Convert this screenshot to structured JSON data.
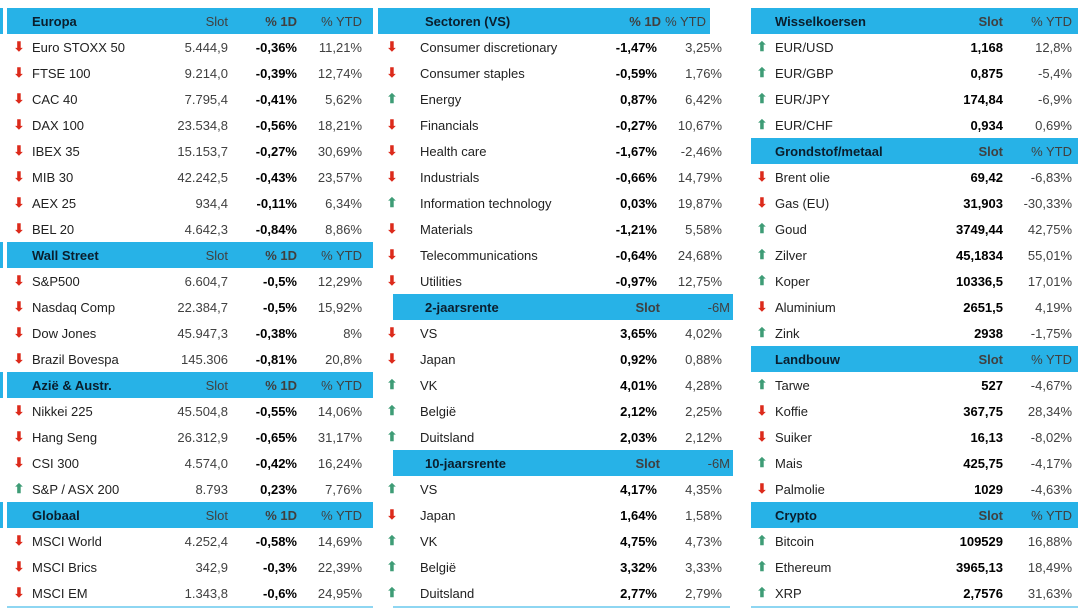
{
  "palette": {
    "header_bg": "#27b2e7",
    "header_faint": "#8ed6f2",
    "arrow_up_green": "#3e9c76",
    "arrow_down_red": "#dc2a1b"
  },
  "icons": {
    "up": "⬆",
    "down": "⬇"
  },
  "tables": [
    {
      "id": "europa",
      "column": "left",
      "variant": "",
      "title": "Europa",
      "headers": [
        "Slot",
        "% 1D",
        "% YTD"
      ],
      "rows": [
        [
          "down",
          "Euro STOXX 50",
          "5.444,9",
          "-0,36%",
          "11,21%"
        ],
        [
          "down",
          "FTSE 100",
          "9.214,0",
          "-0,39%",
          "12,74%"
        ],
        [
          "down",
          "CAC 40",
          "7.795,4",
          "-0,41%",
          "5,62%"
        ],
        [
          "down",
          "DAX 100",
          "23.534,8",
          "-0,56%",
          "18,21%"
        ],
        [
          "down",
          "IBEX 35",
          "15.153,7",
          "-0,27%",
          "30,69%"
        ],
        [
          "down",
          "MIB 30",
          "42.242,5",
          "-0,43%",
          "23,57%"
        ],
        [
          "down",
          "AEX 25",
          "934,4",
          "-0,11%",
          "6,34%"
        ],
        [
          "down",
          "BEL 20",
          "4.642,3",
          "-0,84%",
          "8,86%"
        ]
      ]
    },
    {
      "id": "wall-street",
      "column": "left",
      "variant": "",
      "title": "Wall Street",
      "headers": [
        "Slot",
        "% 1D",
        "% YTD"
      ],
      "rows": [
        [
          "down",
          "S&P500",
          "6.604,7",
          "-0,5%",
          "12,29%"
        ],
        [
          "down",
          "Nasdaq Comp",
          "22.384,7",
          "-0,5%",
          "15,92%"
        ],
        [
          "down",
          "Dow Jones",
          "45.947,3",
          "-0,38%",
          "8%"
        ],
        [
          "down",
          "Brazil Bovespa",
          "145.306",
          "-0,81%",
          "20,8%"
        ]
      ]
    },
    {
      "id": "azie-austr",
      "column": "left",
      "variant": "",
      "title": "Azië & Austr.",
      "headers": [
        "Slot",
        "% 1D",
        "% YTD"
      ],
      "rows": [
        [
          "down",
          "Nikkei 225",
          "45.504,8",
          "-0,55%",
          "14,06%"
        ],
        [
          "down",
          "Hang Seng",
          "26.312,9",
          "-0,65%",
          "31,17%"
        ],
        [
          "down",
          "CSI 300",
          "4.574,0",
          "-0,42%",
          "16,24%"
        ],
        [
          "up",
          "S&P / ASX 200",
          "8.793",
          "0,23%",
          "7,76%"
        ]
      ]
    },
    {
      "id": "globaal",
      "column": "left",
      "variant": "",
      "title": "Globaal",
      "headers": [
        "Slot",
        "% 1D",
        "% YTD"
      ],
      "rows": [
        [
          "down",
          "MSCI World",
          "4.252,4",
          "-0,58%",
          "14,69%"
        ],
        [
          "down",
          "MSCI Brics",
          "342,9",
          "-0,3%",
          "22,39%"
        ],
        [
          "down",
          "MSCI EM",
          "1.343,8",
          "-0,6%",
          "24,95%"
        ]
      ]
    },
    {
      "id": "sectoren-vs",
      "column": "mid",
      "variant": "sectoren",
      "title": "Sectoren (VS)",
      "headers": [
        "% 1D",
        "% YTD"
      ],
      "rows": [
        [
          "down",
          "Consumer discretionary",
          "-1,47%",
          "3,25%"
        ],
        [
          "down",
          "Consumer staples",
          "-0,59%",
          "1,76%"
        ],
        [
          "up",
          "Energy",
          "0,87%",
          "6,42%"
        ],
        [
          "down",
          "Financials",
          "-0,27%",
          "10,67%"
        ],
        [
          "down",
          "Health care",
          "-1,67%",
          "-2,46%"
        ],
        [
          "down",
          "Industrials",
          "-0,66%",
          "14,79%"
        ],
        [
          "up",
          "Information technology",
          "0,03%",
          "19,87%"
        ],
        [
          "down",
          "Materials",
          "-1,21%",
          "5,58%"
        ],
        [
          "down",
          "Telecommunications",
          "-0,64%",
          "24,68%"
        ],
        [
          "down",
          "Utilities",
          "-0,97%",
          "12,75%"
        ]
      ]
    },
    {
      "id": "rente-2j",
      "column": "mid",
      "variant": "rente",
      "title": "2-jaarsrente",
      "headers": [
        "Slot",
        "-6M"
      ],
      "rows": [
        [
          "down",
          "VS",
          "3,65%",
          "4,02%"
        ],
        [
          "down",
          "Japan",
          "0,92%",
          "0,88%"
        ],
        [
          "up",
          "VK",
          "4,01%",
          "4,28%"
        ],
        [
          "up",
          "België",
          "2,12%",
          "2,25%"
        ],
        [
          "up",
          "Duitsland",
          "2,03%",
          "2,12%"
        ]
      ]
    },
    {
      "id": "rente-10j",
      "column": "mid",
      "variant": "rente",
      "title": "10-jaarsrente",
      "headers": [
        "Slot",
        "-6M"
      ],
      "rows": [
        [
          "up",
          "VS",
          "4,17%",
          "4,35%"
        ],
        [
          "down",
          "Japan",
          "1,64%",
          "1,58%"
        ],
        [
          "up",
          "VK",
          "4,75%",
          "4,73%"
        ],
        [
          "up",
          "België",
          "3,32%",
          "3,33%"
        ],
        [
          "up",
          "Duitsland",
          "2,77%",
          "2,79%"
        ]
      ]
    },
    {
      "id": "wisselkoersen",
      "column": "right",
      "variant": "",
      "title": "Wisselkoersen",
      "headers": [
        "Slot",
        "% YTD"
      ],
      "rows": [
        [
          "up",
          "EUR/USD",
          "1,168",
          "12,8%"
        ],
        [
          "up",
          "EUR/GBP",
          "0,875",
          "-5,4%"
        ],
        [
          "up",
          "EUR/JPY",
          "174,84",
          "-6,9%"
        ],
        [
          "up",
          "EUR/CHF",
          "0,934",
          "0,69%"
        ]
      ]
    },
    {
      "id": "grondstof-metaal",
      "column": "right",
      "variant": "",
      "title": "Grondstof/metaal",
      "headers": [
        "Slot",
        "% YTD"
      ],
      "rows": [
        [
          "down",
          "Brent olie",
          "69,42",
          "-6,83%"
        ],
        [
          "down",
          "Gas (EU)",
          "31,903",
          "-30,33%"
        ],
        [
          "up",
          "Goud",
          "3749,44",
          "42,75%"
        ],
        [
          "up",
          "Zilver",
          "45,1834",
          "55,01%"
        ],
        [
          "up",
          "Koper",
          "10336,5",
          "17,01%"
        ],
        [
          "down",
          "Aluminium",
          "2651,5",
          "4,19%"
        ],
        [
          "up",
          "Zink",
          "2938",
          "-1,75%"
        ]
      ]
    },
    {
      "id": "landbouw",
      "column": "right",
      "variant": "",
      "title": "Landbouw",
      "headers": [
        "Slot",
        "% YTD"
      ],
      "rows": [
        [
          "up",
          "Tarwe",
          "527",
          "-4,67%"
        ],
        [
          "down",
          "Koffie",
          "367,75",
          "28,34%"
        ],
        [
          "down",
          "Suiker",
          "16,13",
          "-8,02%"
        ],
        [
          "up",
          "Mais",
          "425,75",
          "-4,17%"
        ],
        [
          "down",
          "Palmolie",
          "1029",
          "-4,63%"
        ]
      ]
    },
    {
      "id": "crypto",
      "column": "right",
      "variant": "",
      "title": "Crypto",
      "headers": [
        "Slot",
        "% YTD"
      ],
      "rows": [
        [
          "up",
          "Bitcoin",
          "109529",
          "16,88%"
        ],
        [
          "up",
          "Ethereum",
          "3965,13",
          "18,49%"
        ],
        [
          "up",
          "XRP",
          "2,7576",
          "31,63%"
        ]
      ]
    }
  ]
}
